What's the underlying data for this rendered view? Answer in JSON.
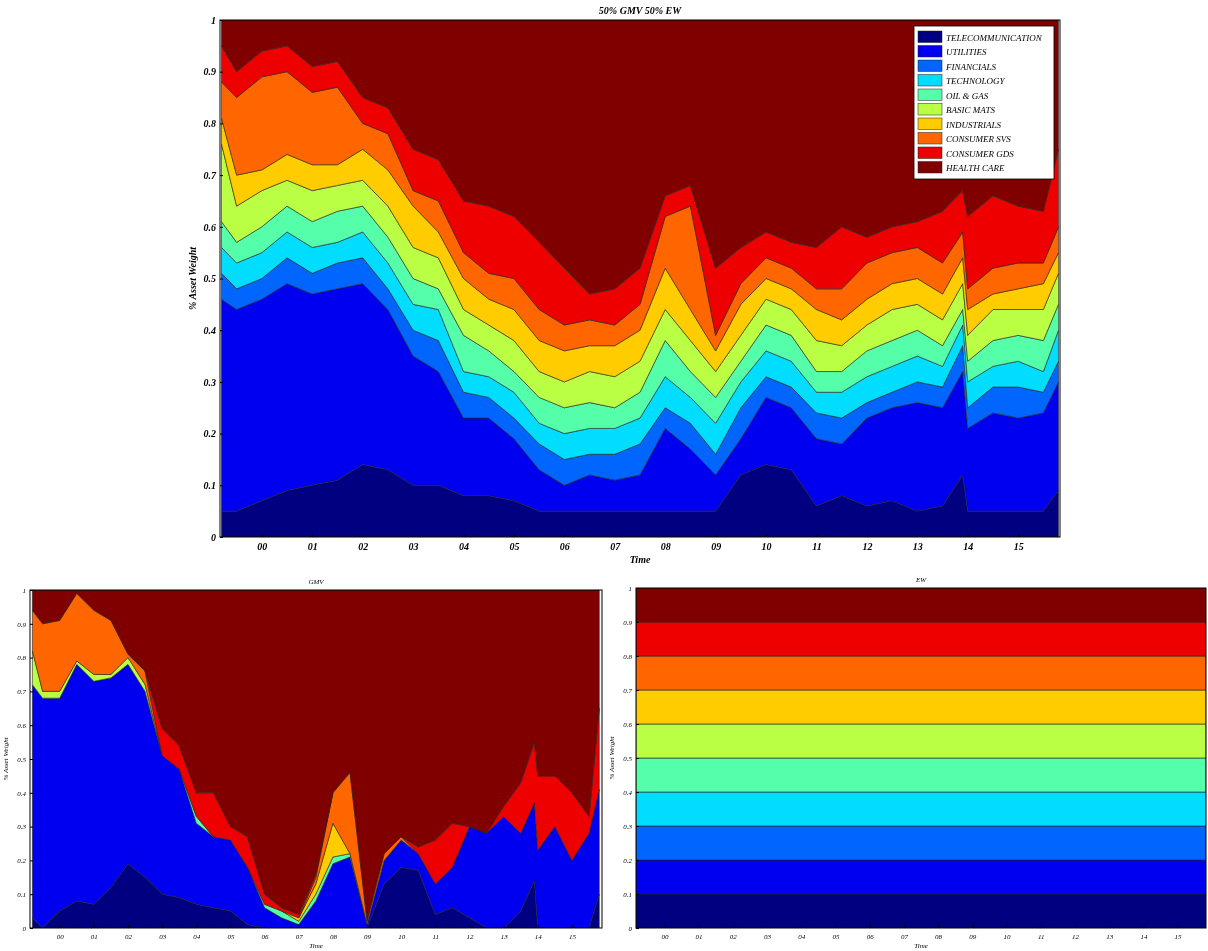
{
  "chart_data": [
    {
      "type": "area",
      "stacked": true,
      "title": "50% GMV 50% EW",
      "xlabel": "Time",
      "ylabel": "% Asset Weight",
      "legend": "top right",
      "x": [
        1999.2,
        1999.5,
        2000,
        2000.5,
        2001,
        2001.5,
        2002,
        2002.5,
        2003,
        2003.5,
        2004,
        2004.5,
        2005,
        2005.5,
        2006,
        2006.5,
        2007,
        2007.5,
        2008,
        2008.5,
        2009,
        2009.5,
        2010,
        2010.5,
        2011,
        2011.5,
        2012,
        2012.5,
        2013,
        2013.5,
        2013.9,
        2014,
        2014.5,
        2015,
        2015.5,
        2015.8
      ],
      "xlim": [
        1999.17,
        2015.83
      ],
      "xticks": [
        {
          "value": 2000,
          "label": "00"
        },
        {
          "value": 2001,
          "label": "01"
        },
        {
          "value": 2002,
          "label": "02"
        },
        {
          "value": 2003,
          "label": "03"
        },
        {
          "value": 2004,
          "label": "04"
        },
        {
          "value": 2005,
          "label": "05"
        },
        {
          "value": 2006,
          "label": "06"
        },
        {
          "value": 2007,
          "label": "07"
        },
        {
          "value": 2008,
          "label": "08"
        },
        {
          "value": 2009,
          "label": "09"
        },
        {
          "value": 2010,
          "label": "10"
        },
        {
          "value": 2011,
          "label": "11"
        },
        {
          "value": 2012,
          "label": "12"
        },
        {
          "value": 2013,
          "label": "13"
        },
        {
          "value": 2014,
          "label": "14"
        },
        {
          "value": 2015,
          "label": "15"
        }
      ],
      "ylim": [
        0,
        1
      ],
      "yticks": [
        0,
        0.1,
        0.2,
        0.3,
        0.4,
        0.5,
        0.6,
        0.7,
        0.8,
        0.9,
        1
      ],
      "series": [
        {
          "name": "TELECOMMUNICATION",
          "color": "#000080",
          "values": [
            0.05,
            0.05,
            0.07,
            0.09,
            0.1,
            0.11,
            0.14,
            0.13,
            0.1,
            0.1,
            0.08,
            0.08,
            0.07,
            0.05,
            0.05,
            0.05,
            0.05,
            0.05,
            0.05,
            0.05,
            0.05,
            0.12,
            0.14,
            0.13,
            0.06,
            0.08,
            0.06,
            0.07,
            0.05,
            0.06,
            0.12,
            0.05,
            0.05,
            0.05,
            0.05,
            0.09
          ]
        },
        {
          "name": "UTILITIES",
          "color": "#0000f0",
          "values": [
            0.41,
            0.39,
            0.39,
            0.4,
            0.37,
            0.37,
            0.35,
            0.31,
            0.25,
            0.22,
            0.15,
            0.15,
            0.12,
            0.08,
            0.05,
            0.07,
            0.06,
            0.07,
            0.16,
            0.12,
            0.07,
            0.07,
            0.13,
            0.12,
            0.13,
            0.1,
            0.17,
            0.18,
            0.21,
            0.19,
            0.2,
            0.16,
            0.19,
            0.18,
            0.19,
            0.21
          ]
        },
        {
          "name": "FINANCIALS",
          "color": "#0066ff",
          "values": [
            0.05,
            0.04,
            0.04,
            0.05,
            0.04,
            0.05,
            0.05,
            0.04,
            0.05,
            0.06,
            0.05,
            0.04,
            0.04,
            0.05,
            0.05,
            0.04,
            0.05,
            0.06,
            0.04,
            0.05,
            0.04,
            0.06,
            0.04,
            0.04,
            0.05,
            0.05,
            0.03,
            0.03,
            0.04,
            0.04,
            0.05,
            0.04,
            0.05,
            0.06,
            0.04,
            0.04
          ]
        },
        {
          "name": "TECHNOLOGY",
          "color": "#00ddff",
          "values": [
            0.05,
            0.05,
            0.05,
            0.05,
            0.05,
            0.04,
            0.05,
            0.05,
            0.05,
            0.06,
            0.04,
            0.04,
            0.05,
            0.04,
            0.05,
            0.05,
            0.05,
            0.05,
            0.06,
            0.05,
            0.06,
            0.05,
            0.05,
            0.05,
            0.04,
            0.05,
            0.05,
            0.05,
            0.05,
            0.04,
            0.04,
            0.05,
            0.04,
            0.05,
            0.04,
            0.06
          ]
        },
        {
          "name": "OIL & GAS",
          "color": "#55ffaa",
          "values": [
            0.05,
            0.04,
            0.05,
            0.05,
            0.05,
            0.06,
            0.05,
            0.05,
            0.05,
            0.04,
            0.07,
            0.05,
            0.04,
            0.05,
            0.05,
            0.05,
            0.04,
            0.05,
            0.07,
            0.05,
            0.05,
            0.04,
            0.05,
            0.05,
            0.04,
            0.04,
            0.05,
            0.05,
            0.05,
            0.04,
            0.03,
            0.04,
            0.05,
            0.05,
            0.06,
            0.05
          ]
        },
        {
          "name": "BASIC MATS",
          "color": "#bbff44",
          "values": [
            0.15,
            0.07,
            0.07,
            0.05,
            0.06,
            0.05,
            0.05,
            0.06,
            0.06,
            0.06,
            0.05,
            0.05,
            0.06,
            0.05,
            0.05,
            0.06,
            0.06,
            0.06,
            0.06,
            0.06,
            0.05,
            0.05,
            0.05,
            0.05,
            0.06,
            0.05,
            0.05,
            0.06,
            0.05,
            0.05,
            0.05,
            0.05,
            0.06,
            0.05,
            0.06,
            0.06
          ]
        },
        {
          "name": "INDUSTRIALS",
          "color": "#ffcc00",
          "values": [
            0.05,
            0.06,
            0.04,
            0.05,
            0.05,
            0.04,
            0.06,
            0.07,
            0.08,
            0.05,
            0.06,
            0.05,
            0.06,
            0.06,
            0.06,
            0.05,
            0.06,
            0.06,
            0.08,
            0.06,
            0.04,
            0.06,
            0.04,
            0.04,
            0.06,
            0.05,
            0.05,
            0.05,
            0.05,
            0.05,
            0.05,
            0.05,
            0.03,
            0.04,
            0.05,
            0.04
          ]
        },
        {
          "name": "CONSUMER SVS",
          "color": "#ff6600",
          "values": [
            0.07,
            0.15,
            0.18,
            0.16,
            0.14,
            0.15,
            0.05,
            0.07,
            0.03,
            0.06,
            0.05,
            0.05,
            0.06,
            0.06,
            0.05,
            0.05,
            0.04,
            0.05,
            0.1,
            0.2,
            0.03,
            0.04,
            0.04,
            0.04,
            0.04,
            0.06,
            0.07,
            0.06,
            0.06,
            0.06,
            0.05,
            0.04,
            0.05,
            0.05,
            0.04,
            0.05
          ]
        },
        {
          "name": "CONSUMER GDS",
          "color": "#ee0000",
          "values": [
            0.07,
            0.05,
            0.05,
            0.05,
            0.05,
            0.05,
            0.05,
            0.05,
            0.08,
            0.08,
            0.1,
            0.13,
            0.12,
            0.13,
            0.11,
            0.05,
            0.07,
            0.07,
            0.04,
            0.04,
            0.13,
            0.07,
            0.05,
            0.05,
            0.08,
            0.12,
            0.05,
            0.05,
            0.05,
            0.1,
            0.08,
            0.14,
            0.14,
            0.11,
            0.1,
            0.15
          ]
        },
        {
          "name": "HEALTH CARE",
          "color": "#800000",
          "values": [
            0.05,
            0.1,
            0.06,
            0.05,
            0.09,
            0.08,
            0.15,
            0.17,
            0.25,
            0.27,
            0.35,
            0.36,
            0.38,
            0.43,
            0.48,
            0.53,
            0.52,
            0.48,
            0.34,
            0.32,
            0.48,
            0.44,
            0.41,
            0.43,
            0.44,
            0.4,
            0.42,
            0.4,
            0.39,
            0.37,
            0.33,
            0.38,
            0.34,
            0.36,
            0.37,
            0.25
          ]
        }
      ]
    },
    {
      "type": "area",
      "stacked": true,
      "title": "GMV",
      "xlabel": "Time",
      "ylabel": "% Asset Weight",
      "x": [
        1999.2,
        1999.5,
        2000,
        2000.5,
        2001,
        2001.5,
        2002,
        2002.5,
        2003,
        2003.5,
        2004,
        2004.5,
        2005,
        2005.5,
        2006,
        2006.5,
        2007,
        2007.5,
        2008,
        2008.5,
        2009,
        2009.5,
        2010,
        2010.5,
        2011,
        2011.5,
        2012,
        2012.5,
        2013,
        2013.5,
        2013.9,
        2014,
        2014.5,
        2015,
        2015.5,
        2015.8
      ],
      "xlim": [
        1999.13,
        2015.88
      ],
      "xticks": [
        {
          "value": 2000,
          "label": "00"
        },
        {
          "value": 2001,
          "label": "01"
        },
        {
          "value": 2002,
          "label": "02"
        },
        {
          "value": 2003,
          "label": "03"
        },
        {
          "value": 2004,
          "label": "04"
        },
        {
          "value": 2005,
          "label": "05"
        },
        {
          "value": 2006,
          "label": "06"
        },
        {
          "value": 2007,
          "label": "07"
        },
        {
          "value": 2008,
          "label": "08"
        },
        {
          "value": 2009,
          "label": "09"
        },
        {
          "value": 2010,
          "label": "10"
        },
        {
          "value": 2011,
          "label": "11"
        },
        {
          "value": 2012,
          "label": "12"
        },
        {
          "value": 2013,
          "label": "13"
        },
        {
          "value": 2014,
          "label": "14"
        },
        {
          "value": 2015,
          "label": "15"
        }
      ],
      "ylim": [
        0,
        1
      ],
      "yticks": [
        0,
        0.1,
        0.2,
        0.3,
        0.4,
        0.5,
        0.6,
        0.7,
        0.8,
        0.9,
        1
      ],
      "series": [
        {
          "color": "#000080",
          "values": [
            0.03,
            0,
            0.05,
            0.08,
            0.07,
            0.12,
            0.19,
            0.15,
            0.1,
            0.09,
            0.07,
            0.06,
            0.05,
            0.01,
            0,
            0,
            0,
            0,
            0,
            0,
            0,
            0.13,
            0.18,
            0.17,
            0.04,
            0.06,
            0.03,
            0,
            0,
            0.05,
            0.14,
            0,
            0,
            0,
            0,
            0.1
          ]
        },
        {
          "color": "#0000f0",
          "values": [
            0.69,
            0.68,
            0.63,
            0.7,
            0.66,
            0.62,
            0.59,
            0.55,
            0.41,
            0.38,
            0.24,
            0.21,
            0.21,
            0.17,
            0.06,
            0.03,
            0.01,
            0.08,
            0.19,
            0.21,
            0.01,
            0.07,
            0.08,
            0.05,
            0.09,
            0.12,
            0.27,
            0.28,
            0.33,
            0.23,
            0.23,
            0.23,
            0.3,
            0.2,
            0.28,
            0.31
          ]
        },
        {
          "color": "#55ffaa",
          "values": [
            null,
            null,
            null,
            null,
            null,
            null,
            null,
            null,
            null,
            0,
            0.02,
            0,
            null,
            0,
            0.01,
            0.02,
            0.01,
            0.02,
            0.02,
            0.01,
            0,
            null,
            null,
            null,
            null,
            null,
            null,
            null,
            null,
            null,
            null,
            null,
            null,
            null,
            null,
            null
          ]
        },
        {
          "color": "#bbff44",
          "values": [
            0.1,
            0.02,
            0.02,
            0.01,
            0.02,
            0.01,
            0.02,
            0.02,
            0,
            null,
            null,
            null,
            null,
            null,
            null,
            null,
            null,
            null,
            null,
            null,
            null,
            null,
            null,
            null,
            null,
            null,
            null,
            null,
            null,
            null,
            null,
            null,
            null,
            null,
            null,
            null
          ]
        },
        {
          "color": "#ffcc00",
          "values": [
            null,
            null,
            null,
            null,
            null,
            null,
            null,
            null,
            null,
            null,
            null,
            null,
            null,
            null,
            null,
            0,
            0.01,
            0.03,
            0.1,
            0,
            null,
            null,
            null,
            null,
            null,
            null,
            null,
            null,
            null,
            null,
            null,
            null,
            null,
            null,
            null,
            null
          ]
        },
        {
          "color": "#ff6600",
          "values": [
            0.12,
            0.2,
            0.21,
            0.2,
            0.19,
            0.16,
            0.01,
            0.04,
            0,
            null,
            null,
            null,
            null,
            null,
            null,
            null,
            0,
            0.02,
            0.09,
            0.24,
            0.01,
            0.02,
            0.01,
            0,
            null,
            null,
            null,
            null,
            null,
            null,
            null,
            null,
            null,
            null,
            null,
            null
          ]
        },
        {
          "color": "#ee0000",
          "values": [
            null,
            null,
            null,
            null,
            null,
            null,
            null,
            0,
            0.08,
            0.07,
            0.07,
            0.13,
            0.04,
            0.09,
            0.03,
            0.01,
            0.01,
            0.01,
            0,
            null,
            null,
            null,
            0,
            0.02,
            0.13,
            0.13,
            0,
            0,
            0.03,
            0.15,
            0.18,
            0.22,
            0.15,
            0.2,
            0.05,
            0.24
          ]
        },
        {
          "color": "#800000",
          "values": [
            0.06,
            0.1,
            0.09,
            0.01,
            0.06,
            0.09,
            0.19,
            0.24,
            0.41,
            0.46,
            0.6,
            0.6,
            0.7,
            0.73,
            0.9,
            0.94,
            0.96,
            0.84,
            0.6,
            0.54,
            0.98,
            0.78,
            0.73,
            0.76,
            0.74,
            0.69,
            0.7,
            0.72,
            0.64,
            0.57,
            0.45,
            0.55,
            0.55,
            0.6,
            0.67,
            0.35
          ]
        }
      ]
    },
    {
      "type": "area",
      "stacked": true,
      "title": "EW",
      "xlabel": "Time",
      "ylabel": "% Asset Weight",
      "x": [
        1999.17,
        2015.83
      ],
      "xlim": [
        1999.17,
        2015.83
      ],
      "xticks": [
        {
          "value": 2000,
          "label": "00"
        },
        {
          "value": 2001,
          "label": "01"
        },
        {
          "value": 2002,
          "label": "02"
        },
        {
          "value": 2003,
          "label": "03"
        },
        {
          "value": 2004,
          "label": "04"
        },
        {
          "value": 2005,
          "label": "05"
        },
        {
          "value": 2006,
          "label": "06"
        },
        {
          "value": 2007,
          "label": "07"
        },
        {
          "value": 2008,
          "label": "08"
        },
        {
          "value": 2009,
          "label": "09"
        },
        {
          "value": 2010,
          "label": "10"
        },
        {
          "value": 2011,
          "label": "11"
        },
        {
          "value": 2012,
          "label": "12"
        },
        {
          "value": 2013,
          "label": "13"
        },
        {
          "value": 2014,
          "label": "14"
        },
        {
          "value": 2015,
          "label": "15"
        }
      ],
      "ylim": [
        0,
        1
      ],
      "yticks": [
        0,
        0.1,
        0.2,
        0.3,
        0.4,
        0.5,
        0.6,
        0.7,
        0.8,
        0.9,
        1
      ],
      "series": [
        {
          "color": "#000080",
          "values": [
            0.1,
            0.1
          ]
        },
        {
          "color": "#0000f0",
          "values": [
            0.1,
            0.1
          ]
        },
        {
          "color": "#0066ff",
          "values": [
            0.1,
            0.1
          ]
        },
        {
          "color": "#00ddff",
          "values": [
            0.1,
            0.1
          ]
        },
        {
          "color": "#55ffaa",
          "values": [
            0.1,
            0.1
          ]
        },
        {
          "color": "#bbff44",
          "values": [
            0.1,
            0.1
          ]
        },
        {
          "color": "#ffcc00",
          "values": [
            0.1,
            0.1
          ]
        },
        {
          "color": "#ff6600",
          "values": [
            0.1,
            0.1
          ]
        },
        {
          "color": "#ee0000",
          "values": [
            0.1,
            0.1
          ]
        },
        {
          "color": "#800000",
          "values": [
            0.1,
            0.1
          ]
        }
      ]
    }
  ]
}
